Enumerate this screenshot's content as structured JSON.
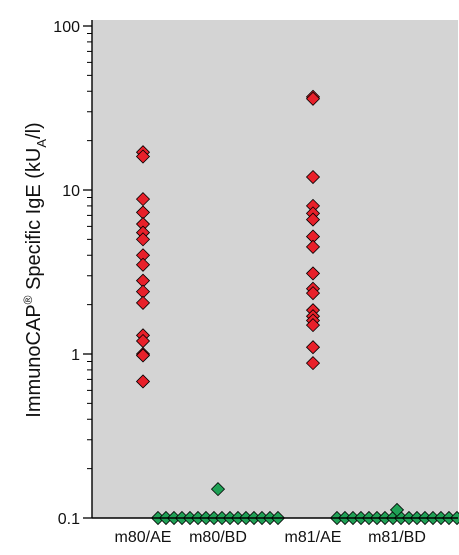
{
  "chart_data": {
    "type": "scatter",
    "yscale": "log",
    "ylim": [
      0.1,
      100
    ],
    "ylabel": {
      "parts": [
        "ImmunoCAP",
        "®",
        " Specific IgE (kU",
        "A",
        "/l)"
      ]
    },
    "yticks": [
      {
        "value": 0.1,
        "label": "0.1"
      },
      {
        "value": 1,
        "label": "1"
      },
      {
        "value": 10,
        "label": "10"
      },
      {
        "value": 100,
        "label": "100"
      }
    ],
    "grid": false,
    "background_color": "#d4d4d4",
    "categories": [
      "m80/AE",
      "m80/BD",
      "m81/AE",
      "m81/BD"
    ],
    "series": [
      {
        "category": "m80/AE",
        "color": "#e8202a",
        "marker": "diamond",
        "values": [
          17,
          16,
          8.8,
          7.3,
          6.2,
          5.5,
          5.0,
          4.0,
          3.5,
          2.8,
          2.4,
          2.05,
          1.3,
          1.2,
          1.0,
          0.98,
          0.68
        ]
      },
      {
        "category": "m80/BD",
        "color": "#1fa055",
        "marker": "diamond",
        "values": [
          0.1,
          0.1,
          0.1,
          0.1,
          0.1,
          0.1,
          0.1,
          0.1,
          0.1,
          0.1,
          0.1,
          0.1,
          0.1,
          0.1,
          0.1,
          0.1,
          0.15
        ]
      },
      {
        "category": "m81/AE",
        "color": "#e8202a",
        "marker": "diamond",
        "values": [
          37,
          36,
          12,
          8.0,
          7.2,
          6.6,
          5.2,
          4.5,
          3.1,
          2.5,
          2.35,
          1.85,
          1.7,
          1.6,
          1.5,
          1.1,
          0.88
        ]
      },
      {
        "category": "m81/BD",
        "color": "#1fa055",
        "marker": "diamond",
        "values": [
          0.1,
          0.1,
          0.1,
          0.1,
          0.1,
          0.1,
          0.1,
          0.1,
          0.1,
          0.1,
          0.1,
          0.1,
          0.1,
          0.1,
          0.1,
          0.1,
          0.112
        ]
      }
    ]
  }
}
